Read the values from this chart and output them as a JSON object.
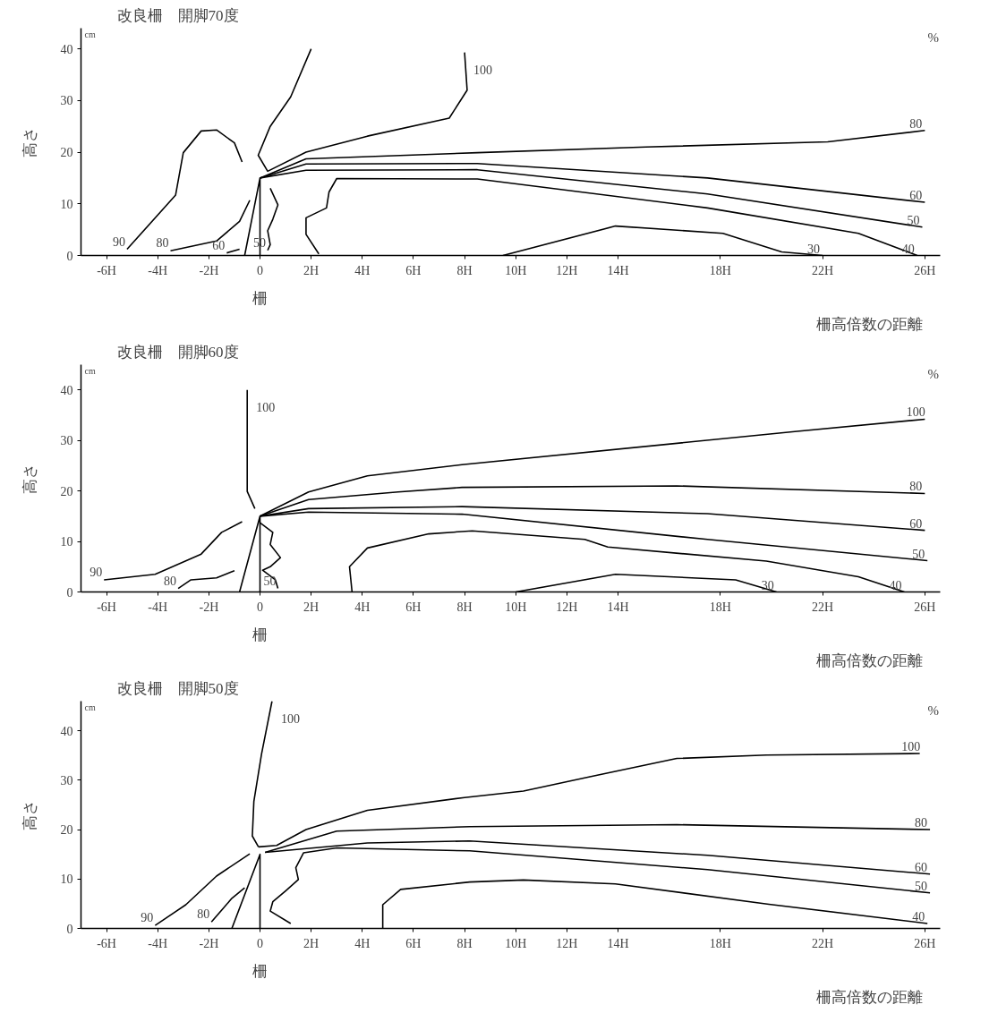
{
  "chart_data": [
    {
      "type": "line",
      "title": "改良柵　開脚70度",
      "xlabel": "柵高倍数の距離",
      "ylabel": "高さ",
      "xlim": [
        -7,
        26.6
      ],
      "ylim": [
        0,
        44
      ],
      "xticks": [
        {
          "value": -6,
          "label": "-6H"
        },
        {
          "value": -4,
          "label": "-4H"
        },
        {
          "value": -2,
          "label": "-2H"
        },
        {
          "value": 0,
          "label": "0"
        },
        {
          "value": 2,
          "label": "2H"
        },
        {
          "value": 4,
          "label": "4H"
        },
        {
          "value": 6,
          "label": "6H"
        },
        {
          "value": 8,
          "label": "8H"
        },
        {
          "value": 10,
          "label": "10H"
        },
        {
          "value": 12,
          "label": "12H"
        },
        {
          "value": 14,
          "label": "14H"
        },
        {
          "value": 18,
          "label": "18H"
        },
        {
          "value": 22,
          "label": "22H"
        },
        {
          "value": 26,
          "label": "26H"
        }
      ],
      "yticks": [
        0,
        10,
        20,
        30,
        40
      ],
      "grid": false,
      "legend": false,
      "series": [
        {
          "color": "#000000",
          "x": [
            -0.6,
            0,
            0
          ],
          "values": [
            0,
            15,
            0
          ]
        },
        {
          "name": "90",
          "color": "#000000",
          "x": [
            -5.2,
            -3.3,
            -3.0,
            -2.3,
            -1.7,
            -1.0,
            -0.7
          ],
          "values": [
            1.2,
            11.7,
            19.9,
            24.1,
            24.3,
            21.8,
            18.1
          ]
        },
        {
          "name": "80",
          "color": "#000000",
          "x": [
            -3.5,
            -1.7,
            -0.8,
            -0.4
          ],
          "values": [
            0.9,
            2.8,
            6.6,
            10.7
          ]
        },
        {
          "name": "60",
          "color": "#000000",
          "x": [
            -1.3,
            -0.8
          ],
          "values": [
            0.5,
            1.2
          ]
        },
        {
          "name": "50",
          "color": "#000000",
          "x": [
            0.3,
            0.4,
            0.3,
            0.5,
            0.7,
            0.4
          ],
          "values": [
            1,
            2.1,
            4.8,
            7,
            9.8,
            13
          ]
        },
        {
          "name": "100",
          "color": "#000000",
          "x": [
            8.0,
            8.1,
            7.4,
            4.2,
            1.8,
            0.3,
            -0.07,
            0.4,
            1.2,
            2.0
          ],
          "values": [
            39.3,
            32,
            26.6,
            23.1,
            20,
            16.3,
            19.4,
            25,
            30.7,
            40
          ]
        },
        {
          "name": "80",
          "color": "#000000",
          "x": [
            0,
            1.8,
            8.5,
            15.1,
            22.2,
            26
          ],
          "values": [
            15,
            18.7,
            19.9,
            21.0,
            22.0,
            24.2
          ]
        },
        {
          "name": "60",
          "color": "#000000",
          "x": [
            0,
            1.8,
            8.5,
            17.5,
            26
          ],
          "values": [
            15,
            17.7,
            17.8,
            15.0,
            10.3
          ]
        },
        {
          "name": "50",
          "color": "#000000",
          "x": [
            0,
            1.8,
            8.5,
            17.5,
            25.9
          ],
          "values": [
            15,
            16.5,
            16.6,
            11.9,
            5.5
          ]
        },
        {
          "name": "40",
          "color": "#000000",
          "x": [
            2.3,
            1.8,
            1.8,
            2.6,
            2.7,
            3.0,
            8.5,
            17.5,
            23.4,
            25.7
          ],
          "values": [
            0.3,
            4.1,
            7.3,
            9.2,
            12.3,
            14.9,
            14.8,
            9.2,
            4.3,
            0
          ]
        },
        {
          "name": "30",
          "color": "#000000",
          "x": [
            9.5,
            13.9,
            18.1,
            20.4,
            22
          ],
          "values": [
            0,
            5.7,
            4.3,
            0.7,
            0
          ]
        }
      ],
      "annotations": [
        "cm",
        "%",
        "柵"
      ]
    },
    {
      "type": "line",
      "title": "改良柵　開脚60度",
      "xlabel": "柵高倍数の距離",
      "ylabel": "高さ",
      "xlim": [
        -7,
        26.6
      ],
      "ylim": [
        0,
        45
      ],
      "xticks": [
        {
          "value": -6,
          "label": "-6H"
        },
        {
          "value": -4,
          "label": "-4H"
        },
        {
          "value": -2,
          "label": "-2H"
        },
        {
          "value": 0,
          "label": "0"
        },
        {
          "value": 2,
          "label": "2H"
        },
        {
          "value": 4,
          "label": "4H"
        },
        {
          "value": 6,
          "label": "6H"
        },
        {
          "value": 8,
          "label": "8H"
        },
        {
          "value": 10,
          "label": "10H"
        },
        {
          "value": 12,
          "label": "12H"
        },
        {
          "value": 14,
          "label": "14H"
        },
        {
          "value": 18,
          "label": "18H"
        },
        {
          "value": 22,
          "label": "22H"
        },
        {
          "value": 26,
          "label": "26H"
        }
      ],
      "yticks": [
        0,
        10,
        20,
        30,
        40
      ],
      "grid": false,
      "legend": false,
      "series": [
        {
          "color": "#000000",
          "x": [
            -0.8,
            0,
            0
          ],
          "values": [
            0,
            15,
            0
          ]
        },
        {
          "name": "100",
          "color": "#000000",
          "x": [
            -0.5,
            -0.5,
            -0.5,
            -0.2
          ],
          "values": [
            40,
            30.4,
            19.9,
            16.5
          ]
        },
        {
          "name": "90",
          "color": "#000000",
          "x": [
            -6.1,
            -4.1,
            -2.3,
            -1.5,
            -0.7
          ],
          "values": [
            2.4,
            3.5,
            7.5,
            11.8,
            13.9
          ]
        },
        {
          "name": "80",
          "color": "#000000",
          "x": [
            -3.2,
            -2.7,
            -1.7,
            -1.0
          ],
          "values": [
            0.7,
            2.4,
            2.8,
            4.2
          ]
        },
        {
          "name": "50",
          "color": "#000000",
          "x": [
            0.7,
            0.6,
            0.1,
            0.4,
            0.8,
            0.4,
            0.5,
            0
          ],
          "values": [
            0.7,
            2.4,
            4.3,
            5.0,
            6.8,
            9.4,
            11.8,
            13.7
          ]
        },
        {
          "name": "100",
          "color": "#000000",
          "x": [
            0,
            1.9,
            4.2,
            7.9,
            21.0,
            26
          ],
          "values": [
            15,
            19.8,
            23.0,
            25.2,
            31.8,
            34.2
          ]
        },
        {
          "name": "80",
          "color": "#000000",
          "x": [
            0,
            1.9,
            5.4,
            7.9,
            16.3,
            26
          ],
          "values": [
            15,
            18.3,
            19.8,
            20.7,
            21.0,
            19.5
          ]
        },
        {
          "name": "60",
          "color": "#000000",
          "x": [
            0,
            1.9,
            7.9,
            17.5,
            26
          ],
          "values": [
            15,
            16.5,
            16.9,
            15.5,
            12.2
          ]
        },
        {
          "name": "50",
          "color": "#000000",
          "x": [
            0,
            1.9,
            7.9,
            17.5,
            26.1
          ],
          "values": [
            15,
            15.8,
            15.4,
            10.4,
            6.2
          ]
        },
        {
          "name": "40",
          "color": "#000000",
          "x": [
            3.6,
            3.5,
            4.2,
            6.6,
            8.3,
            12.7,
            13.6,
            19.8,
            23.4,
            25.2
          ],
          "values": [
            0,
            5,
            8.7,
            11.5,
            12.1,
            10.4,
            8.9,
            6.1,
            3.0,
            0
          ]
        },
        {
          "name": "30",
          "color": "#000000",
          "x": [
            10.0,
            13.9,
            18.6,
            20.2
          ],
          "values": [
            0,
            3.5,
            2.4,
            0
          ]
        }
      ],
      "annotations": [
        "cm",
        "%",
        "柵"
      ]
    },
    {
      "type": "line",
      "title": "改良柵　開脚50度",
      "xlabel": "柵高倍数の距離",
      "ylabel": "高さ",
      "xlim": [
        -7,
        26.6
      ],
      "ylim": [
        0,
        46
      ],
      "xticks": [
        {
          "value": -6,
          "label": "-6H"
        },
        {
          "value": -4,
          "label": "-4H"
        },
        {
          "value": -2,
          "label": "-2H"
        },
        {
          "value": 0,
          "label": "0"
        },
        {
          "value": 2,
          "label": "2H"
        },
        {
          "value": 4,
          "label": "4H"
        },
        {
          "value": 6,
          "label": "6H"
        },
        {
          "value": 8,
          "label": "8H"
        },
        {
          "value": 10,
          "label": "10H"
        },
        {
          "value": 12,
          "label": "12H"
        },
        {
          "value": 14,
          "label": "14H"
        },
        {
          "value": 18,
          "label": "18H"
        },
        {
          "value": 22,
          "label": "22H"
        },
        {
          "value": 26,
          "label": "26H"
        }
      ],
      "yticks": [
        0,
        10,
        20,
        30,
        40
      ],
      "grid": false,
      "legend": false,
      "series": [
        {
          "color": "#000000",
          "x": [
            -1.1,
            0,
            0
          ],
          "values": [
            0,
            15,
            0
          ]
        },
        {
          "name": "100",
          "color": "#000000",
          "x": [
            0.47,
            0.06,
            -0.24,
            -0.3,
            -0.06
          ],
          "values": [
            46,
            35.3,
            25.7,
            18.7,
            16.5
          ]
        },
        {
          "name": "100",
          "color": "#000000",
          "x": [
            -0.06,
            0.65,
            1.8,
            4.2,
            8.0,
            10.3,
            12.9,
            16.3,
            19.8,
            25.8
          ],
          "values": [
            16.5,
            16.8,
            20,
            23.9,
            26.5,
            27.8,
            30.7,
            34.4,
            35.1,
            35.4
          ]
        },
        {
          "name": "90",
          "color": "#000000",
          "x": [
            -4.1,
            -2.9,
            -1.7,
            -0.4
          ],
          "values": [
            0.6,
            4.8,
            10.6,
            15.1
          ]
        },
        {
          "name": "80",
          "color": "#000000",
          "x": [
            -1.9,
            -1.1,
            -0.6
          ],
          "values": [
            1.3,
            6.1,
            8.2
          ]
        },
        {
          "name": "80",
          "color": "#000000",
          "x": [
            0.2,
            3.0,
            8.2,
            16.3,
            26.2
          ],
          "values": [
            15.4,
            19.7,
            20.6,
            21.0,
            20.0
          ]
        },
        {
          "name": "60",
          "color": "#000000",
          "x": [
            0.2,
            4.2,
            8.2,
            17.5,
            26.2
          ],
          "values": [
            15.4,
            17.3,
            17.7,
            14.8,
            11.0
          ]
        },
        {
          "name": "50",
          "color": "#000000",
          "x": [
            1.2,
            0.4,
            0.5,
            1.0,
            1.5,
            1.4,
            1.7,
            3.0,
            8.2,
            17.5,
            26.2
          ],
          "values": [
            1.0,
            3.5,
            5.4,
            7.6,
            9.9,
            12.3,
            15.3,
            16.3,
            15.7,
            11.9,
            7.2
          ]
        },
        {
          "name": "40",
          "color": "#000000",
          "x": [
            4.8,
            4.8,
            5.5,
            8.2,
            10.3,
            13.9,
            19.9,
            26.1
          ],
          "values": [
            0,
            4.8,
            7.9,
            9.4,
            9.8,
            9.0,
            4.9,
            1.0
          ]
        }
      ],
      "annotations": [
        "cm",
        "%",
        "柵"
      ]
    }
  ]
}
